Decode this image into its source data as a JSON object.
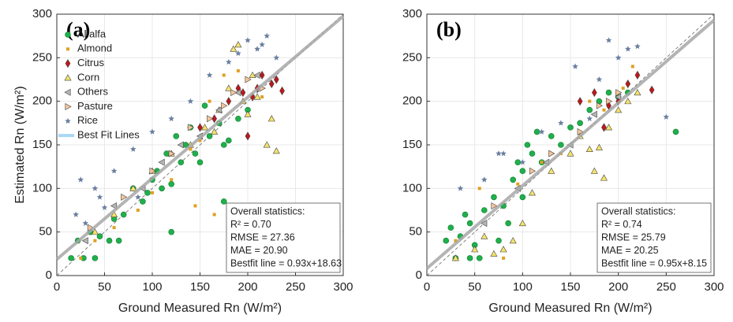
{
  "chart_data": [
    {
      "type": "scatter",
      "title": "(a)",
      "x_label": "Ground Measured Rn (W/m²)",
      "y_label": "Estimated Rn (W/m²)",
      "xlim": [
        0,
        300
      ],
      "ylim": [
        0,
        300
      ],
      "xticks": [
        0,
        50,
        100,
        150,
        200,
        250,
        300
      ],
      "yticks": [
        0,
        50,
        100,
        150,
        200,
        250,
        300
      ],
      "grid": true,
      "legend": "upper left",
      "fit_label": "Best Fit Lines",
      "fit_color": "#a9d6f5",
      "fit": {
        "slope": 0.93,
        "intercept": 18.63
      },
      "annotations": [
        "Overall statistics:",
        "R² = 0.70",
        "RMSE = 27.36",
        "MAE = 20.90",
        "Bestfit line = 0.93x+18.63"
      ],
      "series": [
        {
          "name": "Alfalfa",
          "marker": "circle",
          "color": "#1fb04b",
          "x": [
            15,
            22,
            28,
            35,
            40,
            45,
            55,
            60,
            70,
            80,
            90,
            95,
            100,
            105,
            110,
            115,
            120,
            125,
            130,
            135,
            140,
            145,
            150,
            155,
            160,
            170,
            175,
            180,
            190,
            200,
            65,
            120,
            175
          ],
          "y": [
            20,
            40,
            20,
            50,
            20,
            45,
            40,
            65,
            70,
            100,
            85,
            95,
            110,
            120,
            100,
            140,
            105,
            160,
            130,
            150,
            170,
            140,
            130,
            195,
            160,
            175,
            85,
            155,
            180,
            190,
            40,
            50,
            150
          ]
        },
        {
          "name": "Almond",
          "marker": "square",
          "color": "#e0a020",
          "x": [
            25,
            40,
            60,
            85,
            100,
            120,
            140,
            150,
            160,
            175,
            190,
            200,
            215,
            145,
            165
          ],
          "y": [
            20,
            40,
            55,
            75,
            95,
            110,
            145,
            155,
            200,
            230,
            235,
            185,
            205,
            80,
            70
          ]
        },
        {
          "name": "Citrus",
          "marker": "diamond",
          "color": "#c0161c",
          "x": [
            150,
            165,
            180,
            190,
            195,
            205,
            210,
            215,
            225,
            230,
            200,
            236
          ],
          "y": [
            170,
            180,
            200,
            215,
            210,
            205,
            215,
            230,
            220,
            225,
            160,
            212
          ]
        },
        {
          "name": "Corn",
          "marker": "triangle-up",
          "color": "#f5e36a",
          "x": [
            40,
            60,
            80,
            100,
            120,
            140,
            155,
            165,
            170,
            180,
            190,
            195,
            200,
            205,
            210,
            220,
            225,
            230,
            185
          ],
          "y": [
            50,
            70,
            100,
            120,
            140,
            150,
            170,
            165,
            190,
            215,
            265,
            200,
            185,
            230,
            205,
            150,
            180,
            143,
            260
          ]
        },
        {
          "name": "Others",
          "marker": "triangle-left",
          "color": "#b5b5b5",
          "x": [
            30,
            60,
            90,
            110,
            130,
            150,
            170,
            190,
            210
          ],
          "y": [
            40,
            80,
            100,
            130,
            150,
            160,
            190,
            210,
            230
          ]
        },
        {
          "name": "Pasture",
          "marker": "triangle-right",
          "color": "#f5c49a",
          "x": [
            35,
            70,
            100,
            120,
            140,
            160,
            175,
            185,
            200,
            215
          ],
          "y": [
            55,
            90,
            120,
            140,
            170,
            180,
            195,
            210,
            225,
            215
          ]
        },
        {
          "name": "Rice",
          "marker": "star",
          "color": "#6a7fa0",
          "x": [
            20,
            25,
            30,
            40,
            45,
            60,
            80,
            100,
            120,
            140,
            160,
            180,
            190,
            200,
            210,
            215,
            220,
            230,
            85,
            50
          ],
          "y": [
            70,
            110,
            60,
            100,
            90,
            120,
            145,
            165,
            180,
            200,
            230,
            245,
            255,
            270,
            260,
            265,
            275,
            250,
            90,
            78
          ]
        }
      ]
    },
    {
      "type": "scatter",
      "title": "(b)",
      "x_label": "Ground Measured Rn (W/m²)",
      "xlim": [
        0,
        300
      ],
      "ylim": [
        0,
        300
      ],
      "xticks": [
        0,
        50,
        100,
        150,
        200,
        250,
        300
      ],
      "yticks": [
        0,
        50,
        100,
        150,
        200,
        250,
        300
      ],
      "grid": true,
      "fit": {
        "slope": 0.95,
        "intercept": 8.15
      },
      "annotations": [
        "Overall statistics:",
        "R² = 0.74",
        "RMSE = 25.79",
        "MAE = 20.25",
        "Bestfit line = 0.95x+8.15"
      ],
      "series": [
        {
          "marker": "circle",
          "color": "#1fb04b",
          "x": [
            20,
            25,
            30,
            35,
            40,
            45,
            50,
            55,
            60,
            70,
            75,
            80,
            85,
            90,
            95,
            100,
            105,
            110,
            115,
            120,
            130,
            140,
            150,
            160,
            170,
            180,
            190,
            200,
            210,
            260,
            45,
            100
          ],
          "y": [
            40,
            55,
            20,
            45,
            70,
            60,
            35,
            20,
            75,
            90,
            40,
            80,
            60,
            110,
            130,
            120,
            150,
            140,
            165,
            130,
            160,
            150,
            170,
            175,
            190,
            200,
            210,
            205,
            210,
            165,
            20,
            90
          ]
        },
        {
          "marker": "square",
          "color": "#e0a020",
          "x": [
            30,
            55,
            80,
            95,
            120,
            140,
            170,
            185,
            205,
            215
          ],
          "y": [
            40,
            100,
            20,
            105,
            130,
            140,
            200,
            190,
            215,
            240
          ]
        },
        {
          "marker": "diamond",
          "color": "#c0161c",
          "x": [
            160,
            175,
            190,
            200,
            210,
            220,
            235,
            185
          ],
          "y": [
            200,
            210,
            195,
            200,
            220,
            230,
            213,
            170
          ]
        },
        {
          "marker": "triangle-up",
          "color": "#f5e36a",
          "x": [
            30,
            50,
            60,
            70,
            80,
            90,
            100,
            110,
            130,
            150,
            160,
            170,
            180,
            190,
            200,
            210,
            220,
            175,
            185
          ],
          "y": [
            20,
            30,
            45,
            25,
            30,
            40,
            60,
            95,
            120,
            140,
            160,
            145,
            147,
            170,
            190,
            200,
            210,
            120,
            112
          ]
        },
        {
          "marker": "triangle-left",
          "color": "#b5b5b5",
          "x": [
            60,
            95,
            125,
            150,
            175,
            200
          ],
          "y": [
            60,
            100,
            130,
            150,
            185,
            205
          ]
        },
        {
          "marker": "triangle-right",
          "color": "#f5c49a",
          "x": [
            70,
            110,
            130,
            160,
            180,
            190,
            200
          ],
          "y": [
            80,
            120,
            140,
            165,
            195,
            200,
            210
          ]
        },
        {
          "marker": "star",
          "color": "#6a7fa0",
          "x": [
            35,
            60,
            80,
            100,
            120,
            140,
            155,
            170,
            180,
            190,
            200,
            210,
            220,
            250,
            75
          ],
          "y": [
            100,
            110,
            140,
            130,
            165,
            175,
            240,
            180,
            225,
            270,
            250,
            260,
            263,
            182,
            140
          ]
        }
      ]
    }
  ]
}
